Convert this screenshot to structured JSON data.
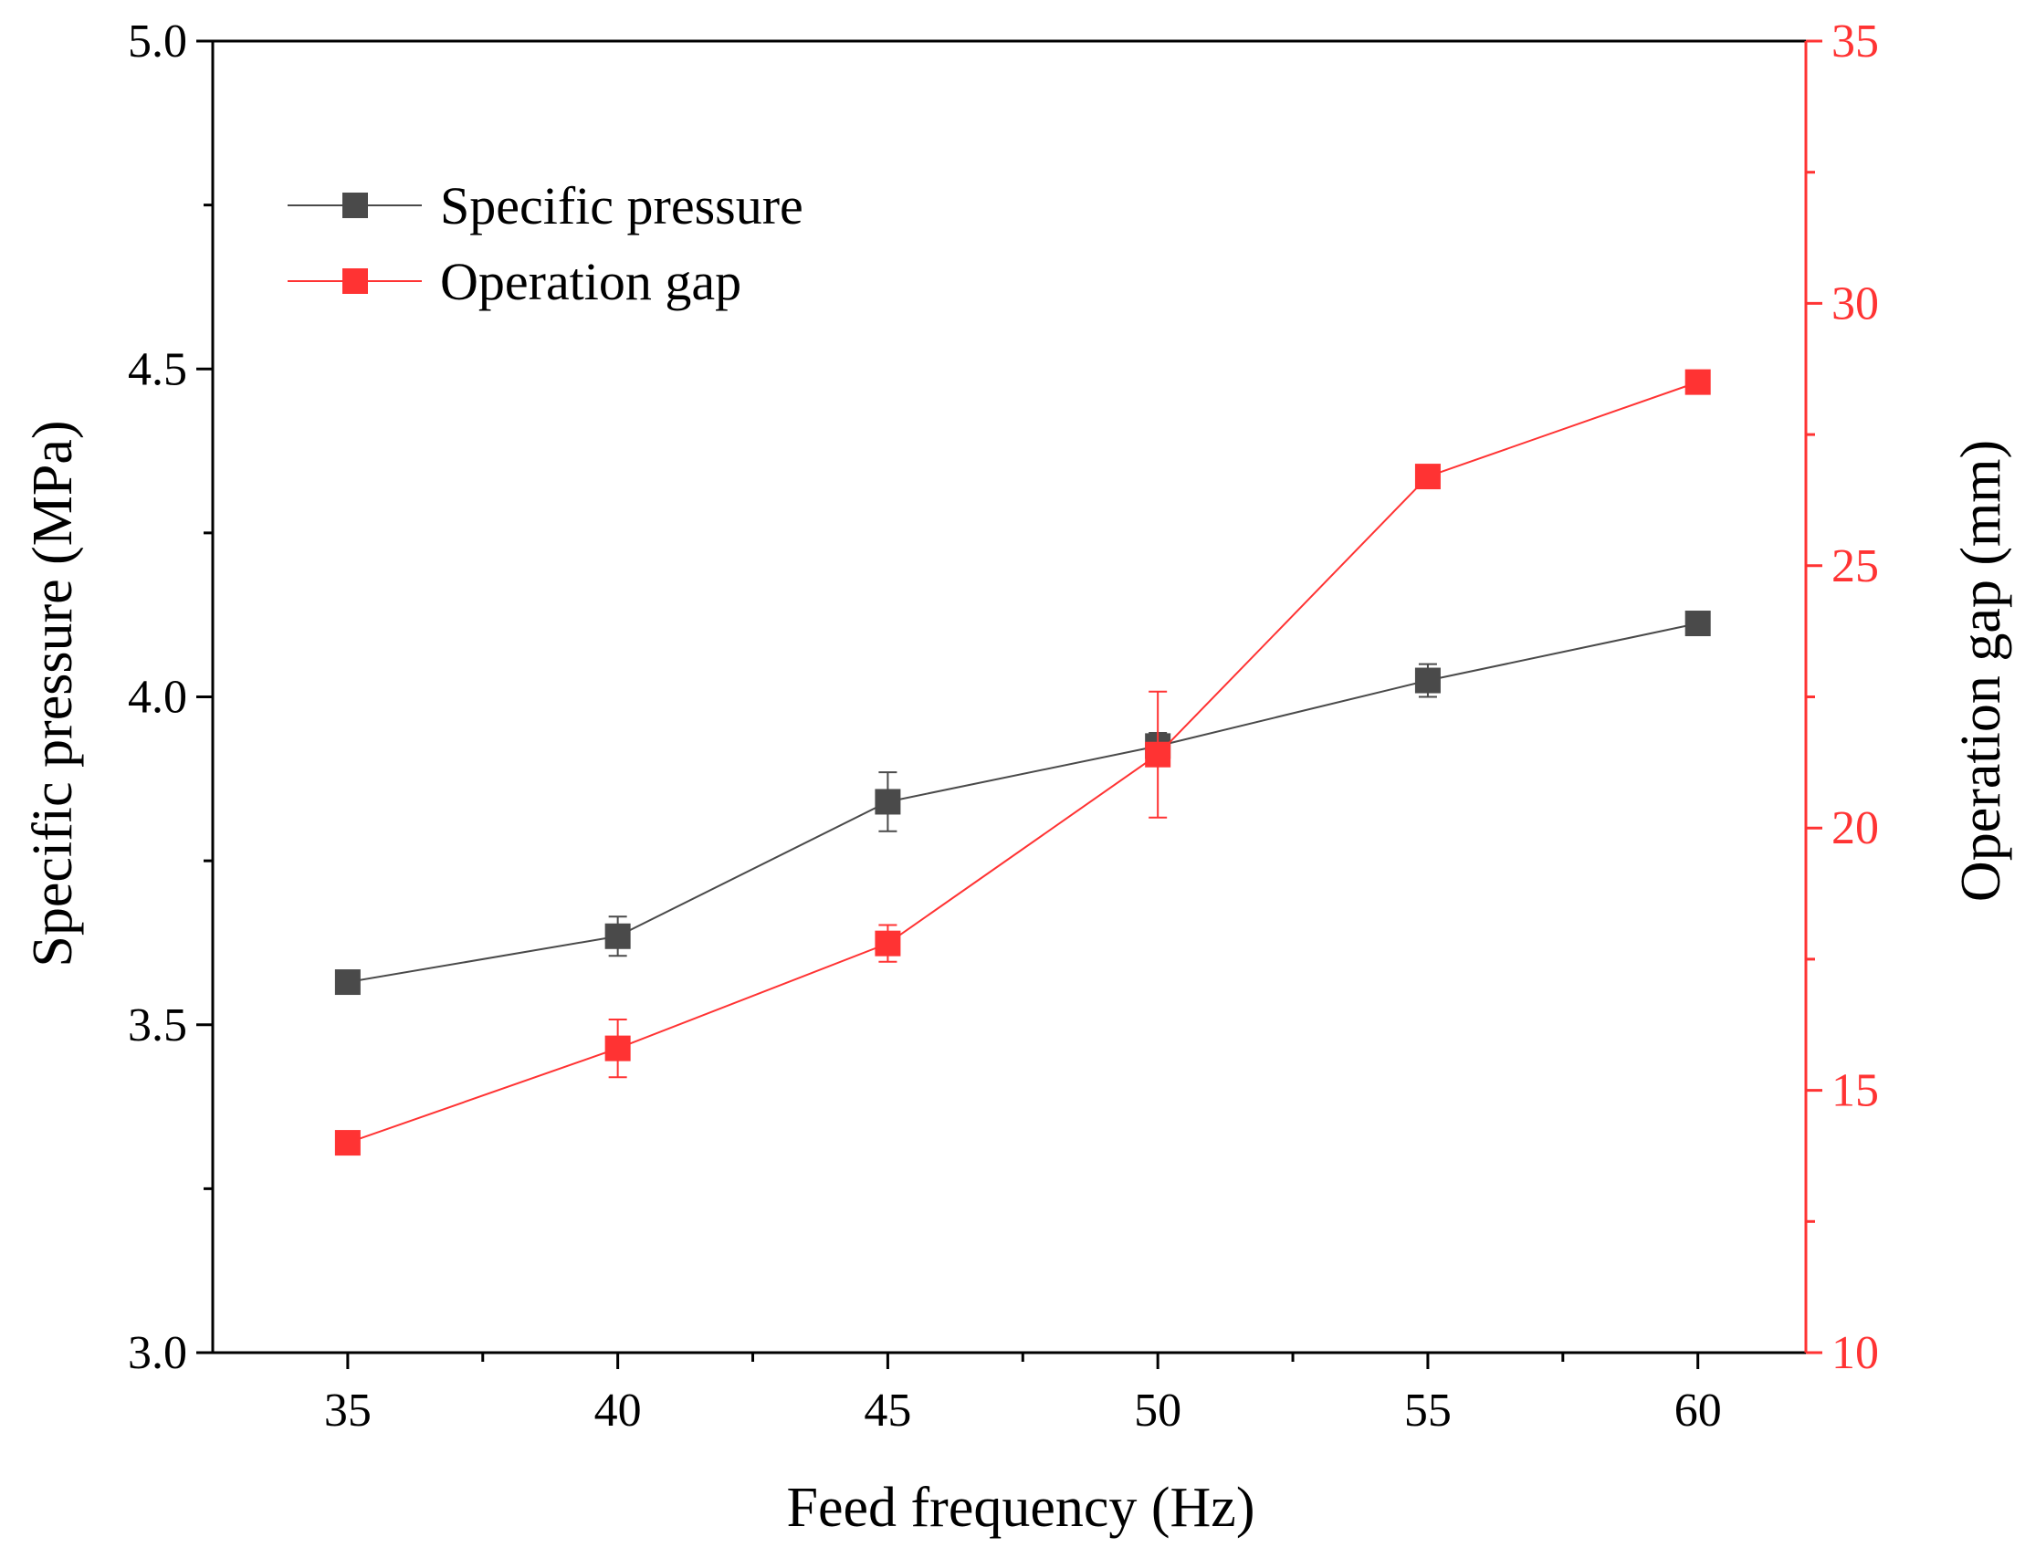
{
  "chart_data": {
    "type": "line",
    "title": "",
    "xlabel": "Feed frequency (Hz)",
    "ylabel_left": "Specific pressure  (MPa)",
    "ylabel_right": "Operation gap (mm)",
    "x": [
      35,
      40,
      45,
      50,
      55,
      60
    ],
    "xlim": [
      32.5,
      62.0
    ],
    "x_ticks": [
      "35",
      "40",
      "45",
      "50",
      "55",
      "60"
    ],
    "ylim_left": [
      3.0,
      5.0
    ],
    "y_ticks_left": [
      "3.0",
      "3.5",
      "4.0",
      "4.5",
      "5.0"
    ],
    "ylim_right": [
      10,
      35
    ],
    "y_ticks_right": [
      "10",
      "15",
      "20",
      "25",
      "30",
      "35"
    ],
    "grid": false,
    "legend_position": "top-left",
    "series": [
      {
        "name": "Specific pressure",
        "axis": "left",
        "color": "#4a4a4a",
        "values": [
          3.565,
          3.635,
          3.84,
          3.925,
          4.025,
          4.112
        ],
        "errors": [
          0.0,
          0.03,
          0.045,
          0.02,
          0.025,
          0.0
        ]
      },
      {
        "name": "Operation gap",
        "axis": "right",
        "color": "#ff3333",
        "values": [
          14.0,
          15.8,
          17.8,
          21.4,
          26.7,
          28.5
        ],
        "errors": [
          0.0,
          0.55,
          0.35,
          1.2,
          0.0,
          0.0
        ]
      }
    ]
  }
}
